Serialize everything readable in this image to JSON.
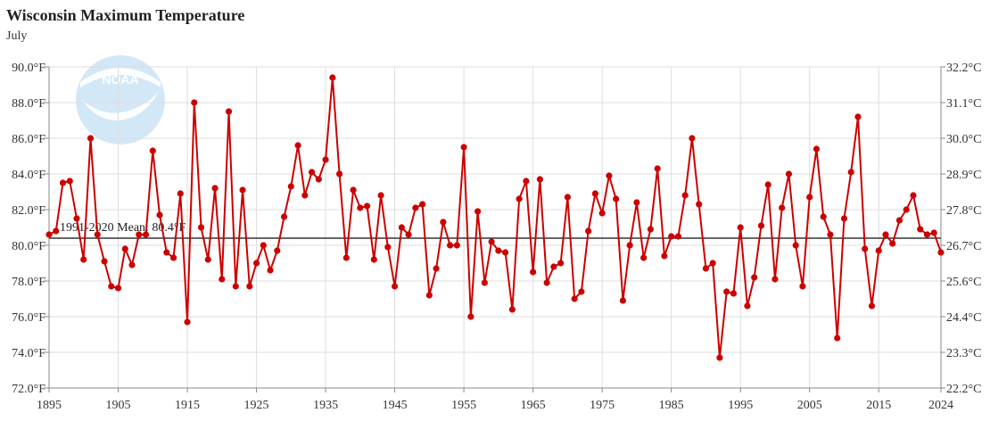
{
  "title": "Wisconsin Maximum Temperature",
  "subtitle": "July",
  "colors": {
    "series": "#cc0000",
    "grid": "#dddddd",
    "mean": "#333333",
    "axis": "#888888"
  },
  "logo_text": "NOAA",
  "chart_data": {
    "type": "line",
    "y_unit": "°F",
    "ylim": [
      72,
      90
    ],
    "y_ticks": [
      "72.0°F",
      "74.0°F",
      "76.0°F",
      "78.0°F",
      "80.0°F",
      "82.0°F",
      "84.0°F",
      "86.0°F",
      "88.0°F",
      "90.0°F"
    ],
    "y2_ticks": [
      "22.2°C",
      "23.3°C",
      "24.4°C",
      "25.6°C",
      "26.7°C",
      "27.8°C",
      "28.9°C",
      "30.0°C",
      "31.1°C",
      "32.2°C"
    ],
    "xlim": [
      1895,
      2024
    ],
    "x_ticks": [
      "1895",
      "1905",
      "1915",
      "1925",
      "1935",
      "1945",
      "1955",
      "1965",
      "1975",
      "1985",
      "1995",
      "2005",
      "2015",
      "2024"
    ],
    "grid": true,
    "mean": {
      "label": "1991-2020 Mean: 80.4°F",
      "value": 80.4
    },
    "series": [
      {
        "values": [
          {
            "x": 1895,
            "y": 80.6
          },
          {
            "x": 1896,
            "y": 80.8
          },
          {
            "x": 1897,
            "y": 83.5
          },
          {
            "x": 1898,
            "y": 83.6
          },
          {
            "x": 1899,
            "y": 81.5
          },
          {
            "x": 1900,
            "y": 79.2
          },
          {
            "x": 1901,
            "y": 86.0
          },
          {
            "x": 1902,
            "y": 80.6
          },
          {
            "x": 1903,
            "y": 79.1
          },
          {
            "x": 1904,
            "y": 77.7
          },
          {
            "x": 1905,
            "y": 77.6
          },
          {
            "x": 1906,
            "y": 79.8
          },
          {
            "x": 1907,
            "y": 78.9
          },
          {
            "x": 1908,
            "y": 80.6
          },
          {
            "x": 1909,
            "y": 80.6
          },
          {
            "x": 1910,
            "y": 85.3
          },
          {
            "x": 1911,
            "y": 81.7
          },
          {
            "x": 1912,
            "y": 79.6
          },
          {
            "x": 1913,
            "y": 79.3
          },
          {
            "x": 1914,
            "y": 82.9
          },
          {
            "x": 1915,
            "y": 75.7
          },
          {
            "x": 1916,
            "y": 88.0
          },
          {
            "x": 1917,
            "y": 81.0
          },
          {
            "x": 1918,
            "y": 79.2
          },
          {
            "x": 1919,
            "y": 83.2
          },
          {
            "x": 1920,
            "y": 78.1
          },
          {
            "x": 1921,
            "y": 87.5
          },
          {
            "x": 1922,
            "y": 77.7
          },
          {
            "x": 1923,
            "y": 83.1
          },
          {
            "x": 1924,
            "y": 77.7
          },
          {
            "x": 1925,
            "y": 79.0
          },
          {
            "x": 1926,
            "y": 80.0
          },
          {
            "x": 1927,
            "y": 78.6
          },
          {
            "x": 1928,
            "y": 79.7
          },
          {
            "x": 1929,
            "y": 81.6
          },
          {
            "x": 1930,
            "y": 83.3
          },
          {
            "x": 1931,
            "y": 85.6
          },
          {
            "x": 1932,
            "y": 82.8
          },
          {
            "x": 1933,
            "y": 84.1
          },
          {
            "x": 1934,
            "y": 83.7
          },
          {
            "x": 1935,
            "y": 84.8
          },
          {
            "x": 1936,
            "y": 89.4
          },
          {
            "x": 1937,
            "y": 84.0
          },
          {
            "x": 1938,
            "y": 79.3
          },
          {
            "x": 1939,
            "y": 83.1
          },
          {
            "x": 1940,
            "y": 82.1
          },
          {
            "x": 1941,
            "y": 82.2
          },
          {
            "x": 1942,
            "y": 79.2
          },
          {
            "x": 1943,
            "y": 82.8
          },
          {
            "x": 1944,
            "y": 79.9
          },
          {
            "x": 1945,
            "y": 77.7
          },
          {
            "x": 1946,
            "y": 81.0
          },
          {
            "x": 1947,
            "y": 80.6
          },
          {
            "x": 1948,
            "y": 82.1
          },
          {
            "x": 1949,
            "y": 82.3
          },
          {
            "x": 1950,
            "y": 77.2
          },
          {
            "x": 1951,
            "y": 78.7
          },
          {
            "x": 1952,
            "y": 81.3
          },
          {
            "x": 1953,
            "y": 80.0
          },
          {
            "x": 1954,
            "y": 80.0
          },
          {
            "x": 1955,
            "y": 85.5
          },
          {
            "x": 1956,
            "y": 76.0
          },
          {
            "x": 1957,
            "y": 81.9
          },
          {
            "x": 1958,
            "y": 77.9
          },
          {
            "x": 1959,
            "y": 80.2
          },
          {
            "x": 1960,
            "y": 79.7
          },
          {
            "x": 1961,
            "y": 79.6
          },
          {
            "x": 1962,
            "y": 76.4
          },
          {
            "x": 1963,
            "y": 82.6
          },
          {
            "x": 1964,
            "y": 83.6
          },
          {
            "x": 1965,
            "y": 78.5
          },
          {
            "x": 1966,
            "y": 83.7
          },
          {
            "x": 1967,
            "y": 77.9
          },
          {
            "x": 1968,
            "y": 78.8
          },
          {
            "x": 1969,
            "y": 79.0
          },
          {
            "x": 1970,
            "y": 82.7
          },
          {
            "x": 1971,
            "y": 77.0
          },
          {
            "x": 1972,
            "y": 77.4
          },
          {
            "x": 1973,
            "y": 80.8
          },
          {
            "x": 1974,
            "y": 82.9
          },
          {
            "x": 1975,
            "y": 81.8
          },
          {
            "x": 1976,
            "y": 83.9
          },
          {
            "x": 1977,
            "y": 82.6
          },
          {
            "x": 1978,
            "y": 76.9
          },
          {
            "x": 1979,
            "y": 80.0
          },
          {
            "x": 1980,
            "y": 82.4
          },
          {
            "x": 1981,
            "y": 79.3
          },
          {
            "x": 1982,
            "y": 80.9
          },
          {
            "x": 1983,
            "y": 84.3
          },
          {
            "x": 1984,
            "y": 79.4
          },
          {
            "x": 1985,
            "y": 80.5
          },
          {
            "x": 1986,
            "y": 80.5
          },
          {
            "x": 1987,
            "y": 82.8
          },
          {
            "x": 1988,
            "y": 86.0
          },
          {
            "x": 1989,
            "y": 82.3
          },
          {
            "x": 1990,
            "y": 78.7
          },
          {
            "x": 1991,
            "y": 79.0
          },
          {
            "x": 1992,
            "y": 73.7
          },
          {
            "x": 1993,
            "y": 77.4
          },
          {
            "x": 1994,
            "y": 77.3
          },
          {
            "x": 1995,
            "y": 81.0
          },
          {
            "x": 1996,
            "y": 76.6
          },
          {
            "x": 1997,
            "y": 78.2
          },
          {
            "x": 1998,
            "y": 81.1
          },
          {
            "x": 1999,
            "y": 83.4
          },
          {
            "x": 2000,
            "y": 78.1
          },
          {
            "x": 2001,
            "y": 82.1
          },
          {
            "x": 2002,
            "y": 84.0
          },
          {
            "x": 2003,
            "y": 80.0
          },
          {
            "x": 2004,
            "y": 77.7
          },
          {
            "x": 2005,
            "y": 82.7
          },
          {
            "x": 2006,
            "y": 85.4
          },
          {
            "x": 2007,
            "y": 81.6
          },
          {
            "x": 2008,
            "y": 80.6
          },
          {
            "x": 2009,
            "y": 74.8
          },
          {
            "x": 2010,
            "y": 81.5
          },
          {
            "x": 2011,
            "y": 84.1
          },
          {
            "x": 2012,
            "y": 87.2
          },
          {
            "x": 2013,
            "y": 79.8
          },
          {
            "x": 2014,
            "y": 76.6
          },
          {
            "x": 2015,
            "y": 79.7
          },
          {
            "x": 2016,
            "y": 80.6
          },
          {
            "x": 2017,
            "y": 80.1
          },
          {
            "x": 2018,
            "y": 81.4
          },
          {
            "x": 2019,
            "y": 82.0
          },
          {
            "x": 2020,
            "y": 82.8
          },
          {
            "x": 2021,
            "y": 80.9
          },
          {
            "x": 2022,
            "y": 80.6
          },
          {
            "x": 2023,
            "y": 80.7
          },
          {
            "x": 2024,
            "y": 79.6
          }
        ]
      }
    ]
  }
}
